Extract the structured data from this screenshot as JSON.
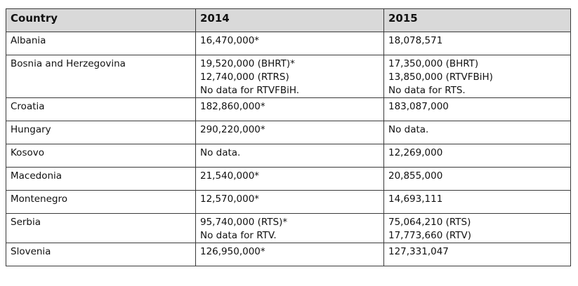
{
  "table": {
    "headers": [
      "Country",
      "2014",
      "2015"
    ],
    "rows": [
      {
        "country": "Albania",
        "y2014": [
          "16,470,000*"
        ],
        "y2015": [
          "18,078,571"
        ]
      },
      {
        "country": "Bosnia and Herzegovina",
        "y2014": [
          "19,520,000 (BHRT)*",
          "12,740,000 (RTRS)",
          "No data for RTVFBiH."
        ],
        "y2015": [
          "17,350,000 (BHRT)",
          "13,850,000 (RTVFBiH)",
          "No data for RTS."
        ]
      },
      {
        "country": "Croatia",
        "y2014": [
          "182,860,000*"
        ],
        "y2015": [
          "183,087,000"
        ]
      },
      {
        "country": "Hungary",
        "y2014": [
          "290,220,000*"
        ],
        "y2015": [
          "No data."
        ]
      },
      {
        "country": "Kosovo",
        "y2014": [
          "No data."
        ],
        "y2015": [
          "12,269,000"
        ]
      },
      {
        "country": "Macedonia",
        "y2014": [
          "21,540,000*"
        ],
        "y2015": [
          "20,855,000"
        ]
      },
      {
        "country": "Montenegro",
        "y2014": [
          "12,570,000*"
        ],
        "y2015": [
          "14,693,111"
        ]
      },
      {
        "country": "Serbia",
        "y2014": [
          "95,740,000 (RTS)*",
          "No data for RTV."
        ],
        "y2015": [
          "75,064,210 (RTS)",
          "17,773,660 (RTV)"
        ]
      },
      {
        "country": "Slovenia",
        "y2014": [
          "126,950,000*"
        ],
        "y2015": [
          "127,331,047"
        ]
      }
    ]
  }
}
